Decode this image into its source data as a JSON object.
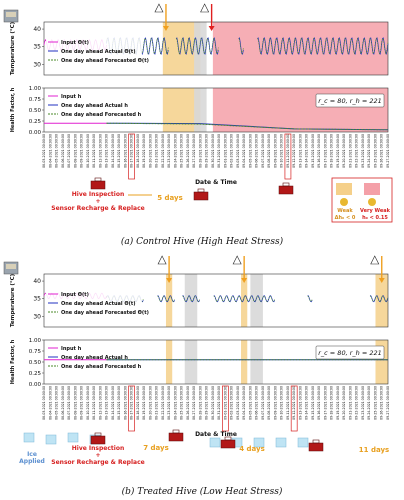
{
  "chart_data": [
    {
      "caption": "(a) Control Hive (High Heat Stress)",
      "type": "line",
      "dates_range": [
        "08-03-2021 00:00:00",
        "09-27-2021 00:00:00"
      ],
      "temperature_panel": {
        "ylabel": "Temperature (°C)",
        "yticks": [
          30,
          35,
          40
        ],
        "ylim": [
          27,
          42
        ],
        "legend": [
          "Input Θ(t)",
          "One day ahead Actual Θ(t)",
          "One day ahead Forecasted Θ(t)"
        ],
        "series": [
          {
            "name": "Input Θ(t)",
            "color": "#e020d0",
            "x": [
              0,
              10
            ],
            "pattern": "daily-oscillation",
            "center": 35.5,
            "amp": 1.5
          },
          {
            "name": "One day ahead Actual Θ(t)",
            "color": "#2030c0",
            "x": [
              10,
              55
            ],
            "pattern": "daily-oscillation",
            "center": 35.2,
            "amp": 2.4
          },
          {
            "name": "One day ahead Forecasted Θ(t)",
            "color": "#4a8a2a",
            "x": [
              10,
              55
            ],
            "pattern": "daily-oscillation",
            "center": 35.2,
            "amp": 2.2
          }
        ],
        "gaps": [
          [
            20,
            21
          ],
          [
            28,
            31
          ],
          [
            32,
            34
          ]
        ]
      },
      "health_panel": {
        "ylabel": "Health Factor, h",
        "yticks": [
          "0.00",
          "0.25",
          "0.50",
          "0.75",
          "1.00"
        ],
        "ylim": [
          0,
          1.0
        ],
        "legend": [
          "Input h",
          "One day ahead Actual h",
          "One day ahead Forecasted h"
        ],
        "annotation": "r_c = 80, r_h = 221",
        "series": [
          {
            "name": "Input h",
            "color": "#e020d0",
            "x": [
              0,
              10
            ],
            "values": [
              0.2,
              0.2
            ]
          },
          {
            "name": "One day ahead Actual h",
            "color": "#2030c0",
            "x": [
              10,
              25,
              40,
              55
            ],
            "values": [
              0.2,
              0.19,
              0.07,
              0.05
            ]
          },
          {
            "name": "One day ahead Forecasted h",
            "color": "#4a8a2a",
            "x": [
              10,
              25,
              40,
              55
            ],
            "values": [
              0.2,
              0.18,
              0.07,
              0.05
            ]
          }
        ]
      },
      "shaded_regions": [
        {
          "type": "weak",
          "x": [
            19,
            25
          ],
          "color": "#f5d08a"
        },
        {
          "type": "gray",
          "x": [
            24,
            26
          ],
          "color": "#d8d8d8"
        },
        {
          "type": "very-weak",
          "x": [
            27,
            55
          ],
          "color": "#f4a0a8"
        }
      ],
      "arrows": [
        {
          "x": 19.5,
          "color": "#f0a020",
          "kind": "warning"
        },
        {
          "x": 26.8,
          "color": "#e02020",
          "kind": "alert"
        }
      ],
      "highlight_date_boxes": [
        14,
        39
      ],
      "xlabel": "Date & Time",
      "events": [
        {
          "label": "Hive Inspection\n+\nSensor Recharge & Replace",
          "x": 14
        },
        {
          "label": "5 days",
          "x": 19
        }
      ],
      "legend_box": {
        "weak": "Weak Δh₀ < 0",
        "very_weak": "Very Weak h₀ < 0.15"
      }
    },
    {
      "caption": "(b) Treated Hive (Low Heat Stress)",
      "type": "line",
      "dates_range": [
        "08-03-2021 00:00:00",
        "09-27-2021 00:00:00"
      ],
      "temperature_panel": {
        "ylabel": "Temperature (°C)",
        "yticks": [
          30,
          35,
          40
        ],
        "ylim": [
          27,
          42
        ],
        "legend": [
          "Input Θ(t)",
          "One day ahead Actual Θ(t)",
          "One day ahead Forecasted Θ(t)"
        ],
        "series": [
          {
            "name": "Input Θ(t)",
            "color": "#e020d0",
            "x": [
              0,
              10
            ],
            "pattern": "daily-oscillation",
            "center": 35.8,
            "amp": 0.8
          },
          {
            "name": "One day ahead Actual Θ(t)",
            "color": "#2030c0",
            "x": [
              10,
              55
            ],
            "pattern": "daily-oscillation",
            "center": 35.0,
            "amp": 0.9
          },
          {
            "name": "One day ahead Forecasted Θ(t)",
            "color": "#4a8a2a",
            "x": [
              10,
              55
            ],
            "pattern": "daily-oscillation",
            "center": 35.0,
            "amp": 0.8
          }
        ],
        "gaps": [
          [
            16,
            18
          ],
          [
            21,
            22
          ],
          [
            25,
            27
          ],
          [
            37,
            42
          ],
          [
            43,
            52
          ]
        ]
      },
      "health_panel": {
        "ylabel": "Health Factor, h",
        "yticks": [
          "0.00",
          "0.25",
          "0.50",
          "0.75",
          "1.00"
        ],
        "ylim": [
          0,
          1.0
        ],
        "legend": [
          "Input h",
          "One day ahead Actual h",
          "One day ahead Forecasted h"
        ],
        "annotation": "r_c = 80, r_h = 221",
        "series": [
          {
            "name": "Input h",
            "color": "#e020d0",
            "x": [
              0,
              10
            ],
            "values": [
              0.55,
              0.55
            ]
          },
          {
            "name": "One day ahead Actual h",
            "color": "#2030c0",
            "x": [
              10,
              55
            ],
            "values": [
              0.55,
              0.55
            ]
          },
          {
            "name": "One day ahead Forecasted h",
            "color": "#4a8a2a",
            "x": [
              10,
              55
            ],
            "values": [
              0.55,
              0.55
            ]
          }
        ]
      },
      "shaded_regions": [
        {
          "type": "weak",
          "x": [
            19.5,
            20.5
          ],
          "color": "#f5d08a"
        },
        {
          "type": "gray",
          "x": [
            22.5,
            24.5
          ],
          "color": "#d8d8d8"
        },
        {
          "type": "weak",
          "x": [
            31.5,
            32.5
          ],
          "color": "#f5d08a"
        },
        {
          "type": "gray",
          "x": [
            33,
            35
          ],
          "color": "#d8d8d8"
        },
        {
          "type": "weak",
          "x": [
            53,
            55
          ],
          "color": "#f5d08a"
        }
      ],
      "arrows": [
        {
          "x": 20,
          "color": "#f0a020",
          "kind": "warning"
        },
        {
          "x": 32,
          "color": "#f0a020",
          "kind": "warning"
        },
        {
          "x": 54,
          "color": "#f0a020",
          "kind": "warning"
        }
      ],
      "highlight_date_boxes": [
        14,
        29,
        40
      ],
      "xlabel": "Date & Time",
      "events": [
        {
          "label": "Ice\nApplied",
          "x": 2
        },
        {
          "label": "Hive Inspection\n+\nSensor Recharge & Replace",
          "x": 14
        },
        {
          "label": "7 days",
          "x": 20
        },
        {
          "label": "4 days",
          "x": 32
        },
        {
          "label": "11 days",
          "x": 54
        }
      ]
    }
  ]
}
